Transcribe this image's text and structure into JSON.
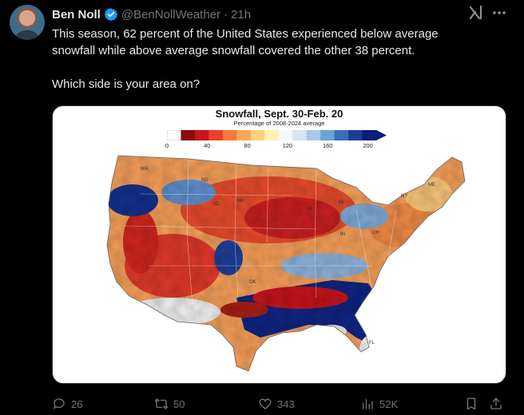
{
  "author": {
    "name": "Ben Noll",
    "handle": "@BenNollWeather",
    "separator": "·",
    "time": "21h"
  },
  "post": {
    "line1": "This season, 62 percent of the United States experienced below average",
    "line2": "snowfall while above average snowfall covered the other 38 percent.",
    "line3": "Which side is your area on?"
  },
  "map": {
    "title": "Snowfall, Sept. 30-Feb. 20",
    "subtitle": "Percentage of 2008-2024 average",
    "legend_ticks": [
      "0",
      "40",
      "80",
      "120",
      "160",
      "200"
    ],
    "legend_colors": [
      "#ffffff",
      "#8b0a0a",
      "#c8141c",
      "#e8412a",
      "#f57a3a",
      "#f9a85a",
      "#fcd27e",
      "#fff0b4",
      "#f4f8fb",
      "#d8e6f2",
      "#a9c8e6",
      "#6ea4d4",
      "#3a6fb8",
      "#1b3f96",
      "#0a1f78"
    ],
    "state_labels": [
      "ND",
      "MN",
      "MI",
      "NY",
      "ME",
      "IN",
      "OK",
      "MS",
      "FL",
      "WI",
      "OH",
      "SD",
      "WA"
    ]
  },
  "actions": {
    "replies": "26",
    "reposts": "50",
    "likes": "343",
    "views": "52K"
  },
  "colors": {
    "background": "#000000",
    "text": "#e7e9ea",
    "muted": "#71767b",
    "verified": "#1d9bf0"
  }
}
